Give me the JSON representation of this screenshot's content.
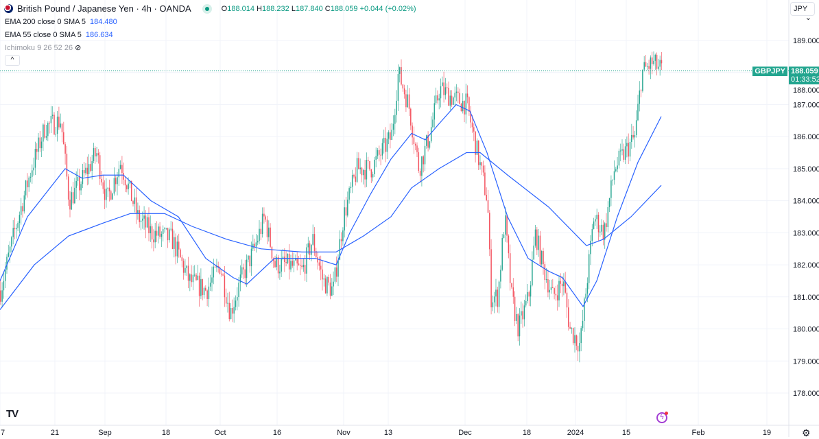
{
  "header": {
    "title": "British Pound / Japanese Yen · 4h · OANDA",
    "o_label": "O",
    "o": "188.014",
    "h_label": "H",
    "h": "188.232",
    "l_label": "L",
    "l": "187.840",
    "c_label": "C",
    "c": "188.059",
    "change": "+0.044 (+0.02%)"
  },
  "indicators": [
    {
      "label": "EMA 200 close 0 SMA 5",
      "value": "184.480"
    },
    {
      "label": "EMA 55 close 0 SMA 5",
      "value": "186.634"
    },
    {
      "label": "Ichimoku 9 26 52 26"
    }
  ],
  "currency": "JPY",
  "last_price": {
    "symbol": "GBPJPY",
    "price": "188.059",
    "countdown": "01:33:52"
  },
  "colors": {
    "up": "#089981",
    "down": "#f23645",
    "ema": "#2962ff",
    "grid": "#f0f3fa"
  },
  "chart_data": {
    "type": "candlestick",
    "ylim": [
      177.6,
      189.6
    ],
    "y_ticks": [
      "178.000",
      "179.000",
      "180.000",
      "181.000",
      "182.000",
      "183.000",
      "184.000",
      "185.000",
      "186.000",
      "187.000",
      "188.000",
      "189.000"
    ],
    "x_ticks": [
      {
        "t": 0,
        "label": "7"
      },
      {
        "t": 80,
        "label": "21"
      },
      {
        "t": 153,
        "label": "Sep"
      },
      {
        "t": 242,
        "label": "18"
      },
      {
        "t": 321,
        "label": "Oct"
      },
      {
        "t": 404,
        "label": "16"
      },
      {
        "t": 501,
        "label": "Nov"
      },
      {
        "t": 566,
        "label": "13"
      },
      {
        "t": 678,
        "label": "Dec"
      },
      {
        "t": 768,
        "label": "18"
      },
      {
        "t": 839,
        "label": "2024"
      },
      {
        "t": 913,
        "label": "15"
      },
      {
        "t": 1018,
        "label": "Feb"
      },
      {
        "t": 1118,
        "label": "19"
      }
    ],
    "x_range": [
      0,
      1150
    ],
    "price_path": [
      [
        0,
        181.2
      ],
      [
        20,
        183
      ],
      [
        45,
        185
      ],
      [
        65,
        186.3
      ],
      [
        88,
        186.5
      ],
      [
        100,
        184
      ],
      [
        115,
        184.5
      ],
      [
        140,
        185.5
      ],
      [
        155,
        184
      ],
      [
        175,
        185.2
      ],
      [
        200,
        183.5
      ],
      [
        220,
        183
      ],
      [
        250,
        182.8
      ],
      [
        275,
        181.5
      ],
      [
        300,
        181.2
      ],
      [
        320,
        182
      ],
      [
        335,
        180.5
      ],
      [
        350,
        181.5
      ],
      [
        370,
        182.5
      ],
      [
        385,
        183.5
      ],
      [
        400,
        182
      ],
      [
        420,
        182
      ],
      [
        440,
        181.8
      ],
      [
        455,
        182.8
      ],
      [
        470,
        181.5
      ],
      [
        485,
        181.2
      ],
      [
        500,
        183.5
      ],
      [
        520,
        185
      ],
      [
        540,
        185
      ],
      [
        555,
        185.5
      ],
      [
        570,
        186
      ],
      [
        580,
        188
      ],
      [
        595,
        187
      ],
      [
        610,
        185
      ],
      [
        625,
        186
      ],
      [
        640,
        187.5
      ],
      [
        660,
        187.2
      ],
      [
        680,
        187
      ],
      [
        695,
        185.5
      ],
      [
        710,
        184
      ],
      [
        715,
        181
      ],
      [
        725,
        181
      ],
      [
        735,
        183.5
      ],
      [
        745,
        181
      ],
      [
        755,
        180
      ],
      [
        770,
        181
      ],
      [
        780,
        183
      ],
      [
        790,
        182
      ],
      [
        805,
        181
      ],
      [
        820,
        181.5
      ],
      [
        830,
        180
      ],
      [
        845,
        179.5
      ],
      [
        855,
        181.5
      ],
      [
        865,
        183.5
      ],
      [
        880,
        183
      ],
      [
        895,
        185
      ],
      [
        910,
        185.5
      ],
      [
        925,
        186
      ],
      [
        935,
        188
      ],
      [
        950,
        188.3
      ],
      [
        965,
        188.06
      ]
    ],
    "series": [
      {
        "name": "EMA 55",
        "values": [
          [
            0,
            181.5
          ],
          [
            40,
            183.5
          ],
          [
            95,
            185
          ],
          [
            120,
            184.7
          ],
          [
            150,
            184.8
          ],
          [
            180,
            184.8
          ],
          [
            220,
            184
          ],
          [
            260,
            183.5
          ],
          [
            300,
            182.2
          ],
          [
            340,
            181.6
          ],
          [
            360,
            181.4
          ],
          [
            400,
            182.2
          ],
          [
            460,
            182.2
          ],
          [
            490,
            182
          ],
          [
            510,
            183
          ],
          [
            540,
            184.2
          ],
          [
            570,
            185.3
          ],
          [
            600,
            186.1
          ],
          [
            620,
            185.9
          ],
          [
            640,
            186.4
          ],
          [
            665,
            187
          ],
          [
            685,
            186.8
          ],
          [
            710,
            185.5
          ],
          [
            740,
            183.5
          ],
          [
            770,
            182.2
          ],
          [
            800,
            181.8
          ],
          [
            820,
            181.6
          ],
          [
            850,
            180.7
          ],
          [
            870,
            181.5
          ],
          [
            900,
            183.5
          ],
          [
            930,
            185.2
          ],
          [
            964,
            186.63
          ]
        ]
      },
      {
        "name": "EMA 200",
        "values": [
          [
            0,
            180.6
          ],
          [
            50,
            182
          ],
          [
            100,
            182.9
          ],
          [
            150,
            183.3
          ],
          [
            190,
            183.6
          ],
          [
            240,
            183.6
          ],
          [
            280,
            183.2
          ],
          [
            330,
            182.8
          ],
          [
            380,
            182.5
          ],
          [
            440,
            182.4
          ],
          [
            490,
            182.4
          ],
          [
            530,
            182.9
          ],
          [
            570,
            183.5
          ],
          [
            600,
            184.4
          ],
          [
            640,
            185
          ],
          [
            680,
            185.5
          ],
          [
            700,
            185.5
          ],
          [
            740,
            184.8
          ],
          [
            800,
            183.8
          ],
          [
            855,
            182.6
          ],
          [
            880,
            182.8
          ],
          [
            920,
            183.5
          ],
          [
            964,
            184.48
          ]
        ]
      }
    ],
    "last_close": 188.059
  }
}
